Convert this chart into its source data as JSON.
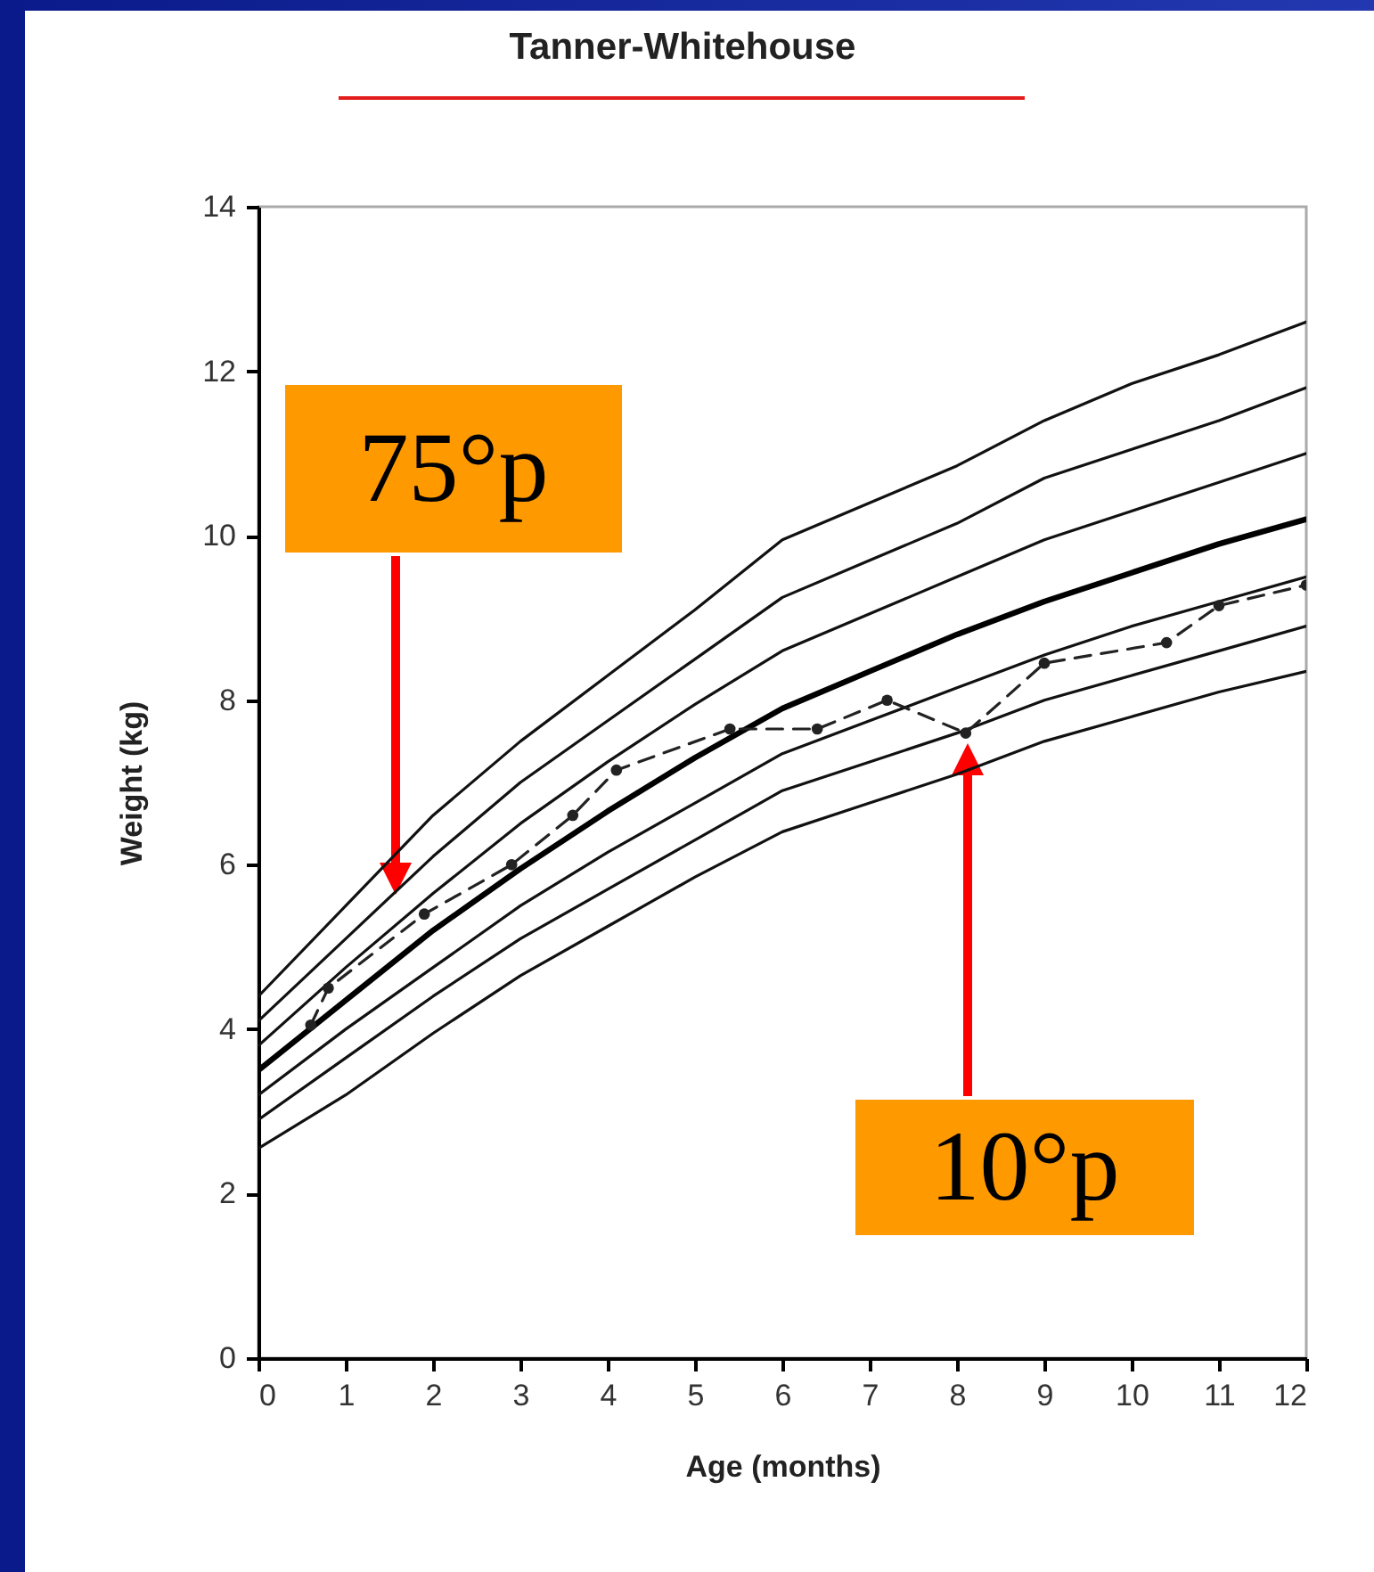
{
  "chart_data": {
    "type": "line",
    "title": "Tanner-Whitehouse",
    "xlabel": "Age (months)",
    "ylabel": "Weight (kg)",
    "xlim": [
      0,
      12
    ],
    "xticks": [
      0,
      1,
      2,
      3,
      4,
      5,
      6,
      7,
      8,
      9,
      10,
      11,
      12
    ],
    "ylim": [
      0,
      14
    ],
    "yticks": [
      0,
      2,
      4,
      6,
      8,
      10,
      12,
      14
    ],
    "x": [
      0,
      1,
      2,
      3,
      4,
      5,
      6,
      7,
      8,
      9,
      10,
      11,
      12
    ],
    "grid": false,
    "line_style": "solid",
    "marker": "none",
    "series": [
      {
        "color": "#111111",
        "values": [
          4.4,
          5.5,
          6.6,
          7.5,
          8.3,
          9.1,
          9.95,
          10.4,
          10.85,
          11.4,
          11.85,
          12.2,
          12.6
        ]
      },
      {
        "color": "#111111",
        "values": [
          4.1,
          5.1,
          6.1,
          7.0,
          7.75,
          8.5,
          9.25,
          9.7,
          10.15,
          10.7,
          11.05,
          11.4,
          11.8
        ]
      },
      {
        "color": "#111111",
        "values": [
          3.8,
          4.75,
          5.65,
          6.5,
          7.25,
          7.95,
          8.6,
          9.05,
          9.5,
          9.95,
          10.3,
          10.65,
          11.0
        ]
      },
      {
        "color": "#000000",
        "values": [
          3.5,
          4.35,
          5.2,
          5.95,
          6.65,
          7.3,
          7.9,
          8.35,
          8.8,
          9.2,
          9.55,
          9.9,
          10.2
        ]
      },
      {
        "color": "#111111",
        "values": [
          3.2,
          4.0,
          4.75,
          5.5,
          6.15,
          6.75,
          7.35,
          7.75,
          8.15,
          8.55,
          8.9,
          9.2,
          9.5
        ]
      },
      {
        "color": "#111111",
        "values": [
          2.9,
          3.65,
          4.4,
          5.1,
          5.7,
          6.3,
          6.9,
          7.25,
          7.6,
          8.0,
          8.3,
          8.6,
          8.9
        ]
      },
      {
        "color": "#111111",
        "values": [
          2.55,
          3.2,
          3.95,
          4.65,
          5.25,
          5.85,
          6.4,
          6.75,
          7.1,
          7.5,
          7.8,
          8.1,
          8.35
        ]
      },
      {
        "color": "#222222",
        "line_style": "dashed",
        "marker": "circle",
        "x": [
          0.6,
          0.8,
          1.9,
          2.9,
          3.6,
          4.1,
          5.4,
          6.4,
          7.2,
          8.1,
          9.0,
          10.4,
          11.0,
          12.0
        ],
        "values": [
          4.05,
          4.5,
          5.4,
          6.0,
          6.6,
          7.15,
          7.65,
          7.65,
          8.0,
          7.6,
          8.45,
          8.7,
          9.15,
          9.4
        ]
      }
    ],
    "annotations": [
      "75°p",
      "10°p"
    ]
  }
}
